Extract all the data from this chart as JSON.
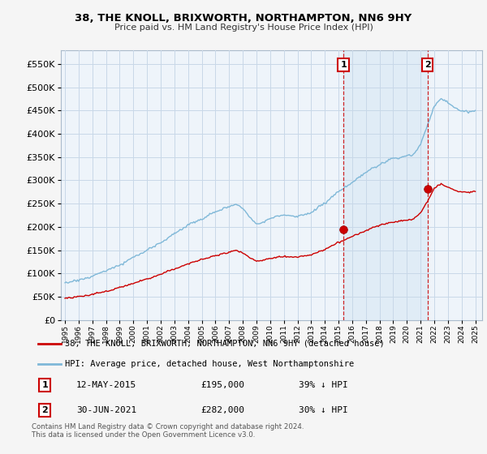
{
  "title1": "38, THE KNOLL, BRIXWORTH, NORTHAMPTON, NN6 9HY",
  "title2": "Price paid vs. HM Land Registry's House Price Index (HPI)",
  "legend_line1": "38, THE KNOLL, BRIXWORTH, NORTHAMPTON, NN6 9HY (detached house)",
  "legend_line2": "HPI: Average price, detached house, West Northamptonshire",
  "footnote": "Contains HM Land Registry data © Crown copyright and database right 2024.\nThis data is licensed under the Open Government Licence v3.0.",
  "annotation1_date": "12-MAY-2015",
  "annotation1_price": "£195,000",
  "annotation1_hpi": "39% ↓ HPI",
  "annotation2_date": "30-JUN-2021",
  "annotation2_price": "£282,000",
  "annotation2_hpi": "30% ↓ HPI",
  "hpi_color": "#7fb8d8",
  "price_color": "#cc0000",
  "shade_color": "#ddeeff",
  "plot_bg_color": "#eef4fa",
  "fig_bg_color": "#f5f5f5",
  "grid_color": "#c8d8e8",
  "ylim": [
    0,
    580000
  ],
  "yticks": [
    0,
    50000,
    100000,
    150000,
    200000,
    250000,
    300000,
    350000,
    400000,
    450000,
    500000,
    550000
  ],
  "sale1_x": 2015.36,
  "sale1_y": 195000,
  "sale2_x": 2021.5,
  "sale2_y": 282000,
  "vline1_x": 2015.36,
  "vline2_x": 2021.5,
  "xlim_left": 1994.7,
  "xlim_right": 2025.5
}
